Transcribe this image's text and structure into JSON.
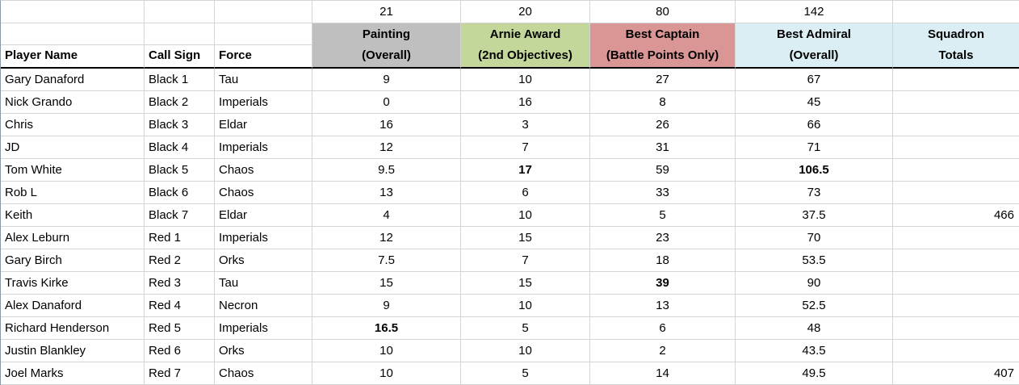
{
  "app": "spreadsheet",
  "colors": {
    "painting_bg": "#bfbfbf",
    "arnie_bg": "#c4d79b",
    "captain_bg": "#d99694",
    "admiral_bg": "#daeef3",
    "squadron_bg": "#daeef3",
    "gridline": "#d4d4d4",
    "header_border": "#000000"
  },
  "table": {
    "points_row": {
      "painting": "21",
      "arnie": "20",
      "captain": "80",
      "admiral": "142"
    },
    "columns": {
      "player_name": "Player Name",
      "call_sign": "Call Sign",
      "force": "Force",
      "painting": {
        "line1": "Painting",
        "line2": "(Overall)"
      },
      "arnie": {
        "line1": "Arnie Award",
        "line2": "(2nd Objectives)"
      },
      "captain": {
        "line1": "Best Captain",
        "line2": "(Battle Points Only)"
      },
      "admiral": {
        "line1": "Best Admiral",
        "line2": "(Overall)"
      },
      "squadron": {
        "line1": "Squadron",
        "line2": "Totals"
      }
    },
    "rows": [
      {
        "name": "Gary Danaford",
        "call_sign": "Black 1",
        "force": "Tau",
        "painting": "9",
        "arnie": "10",
        "captain": "27",
        "admiral": "67",
        "squadron": ""
      },
      {
        "name": "Nick Grando",
        "call_sign": "Black 2",
        "force": "Imperials",
        "painting": "0",
        "arnie": "16",
        "captain": "8",
        "admiral": "45",
        "squadron": ""
      },
      {
        "name": "Chris",
        "call_sign": "Black 3",
        "force": "Eldar",
        "painting": "16",
        "arnie": "3",
        "captain": "26",
        "admiral": "66",
        "squadron": ""
      },
      {
        "name": "JD",
        "call_sign": "Black 4",
        "force": "Imperials",
        "painting": "12",
        "arnie": "7",
        "captain": "31",
        "admiral": "71",
        "squadron": ""
      },
      {
        "name": "Tom White",
        "call_sign": "Black 5",
        "force": "Chaos",
        "painting": "9.5",
        "arnie": "17",
        "captain": "59",
        "admiral": "106.5",
        "squadron": "",
        "bold": [
          "arnie",
          "admiral"
        ]
      },
      {
        "name": "Rob L",
        "call_sign": "Black 6",
        "force": "Chaos",
        "painting": "13",
        "arnie": "6",
        "captain": "33",
        "admiral": "73",
        "squadron": ""
      },
      {
        "name": "Keith",
        "call_sign": "Black 7",
        "force": "Eldar",
        "painting": "4",
        "arnie": "10",
        "captain": "5",
        "admiral": "37.5",
        "squadron": "466"
      },
      {
        "name": "Alex Leburn",
        "call_sign": "Red 1",
        "force": "Imperials",
        "painting": "12",
        "arnie": "15",
        "captain": "23",
        "admiral": "70",
        "squadron": ""
      },
      {
        "name": "Gary Birch",
        "call_sign": "Red 2",
        "force": "Orks",
        "painting": "7.5",
        "arnie": "7",
        "captain": "18",
        "admiral": "53.5",
        "squadron": ""
      },
      {
        "name": "Travis Kirke",
        "call_sign": "Red 3",
        "force": "Tau",
        "painting": "15",
        "arnie": "15",
        "captain": "39",
        "admiral": "90",
        "squadron": "",
        "bold": [
          "captain"
        ]
      },
      {
        "name": "Alex Danaford",
        "call_sign": "Red 4",
        "force": "Necron",
        "painting": "9",
        "arnie": "10",
        "captain": "13",
        "admiral": "52.5",
        "squadron": ""
      },
      {
        "name": "Richard Henderson",
        "call_sign": "Red 5",
        "force": "Imperials",
        "painting": "16.5",
        "arnie": "5",
        "captain": "6",
        "admiral": "48",
        "squadron": "",
        "bold": [
          "painting"
        ]
      },
      {
        "name": "Justin Blankley",
        "call_sign": "Red 6",
        "force": "Orks",
        "painting": "10",
        "arnie": "10",
        "captain": "2",
        "admiral": "43.5",
        "squadron": ""
      },
      {
        "name": "Joel Marks",
        "call_sign": "Red 7",
        "force": "Chaos",
        "painting": "10",
        "arnie": "5",
        "captain": "14",
        "admiral": "49.5",
        "squadron": "407"
      }
    ]
  }
}
